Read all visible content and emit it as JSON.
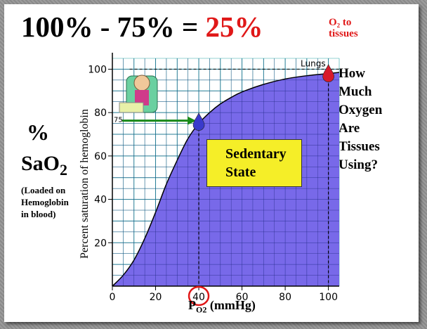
{
  "title": {
    "part1": "100% - 75% = ",
    "highlight": "25%",
    "sub_line1": "O₂ to",
    "sub_line2": "tissues"
  },
  "left_label": {
    "percent": "%",
    "sao2": "SaO",
    "sao2_sub": "2",
    "note_line1": "(Loaded on",
    "note_line2": "Hemoglobin",
    "note_line3": "in blood)"
  },
  "right_label": {
    "line1": "How",
    "line2": "Much",
    "line3": "Oxygen",
    "line4": "Are",
    "line5": "Tissues",
    "line6": "Using?"
  },
  "box_label": {
    "line1": "Sedentary",
    "line2": "State"
  },
  "colors": {
    "curve_fill": "#6c5ce7",
    "grid": "#2aa8a8",
    "highlight": "#e01818",
    "box": "#f5ee28",
    "arrow": "#1a8a1a"
  },
  "chart_data": {
    "type": "area",
    "xlabel": "P",
    "xlabel_sub": "O2",
    "xlabel_unit": " (mmHg)",
    "ylabel": "Percent saturation of hemoglobin",
    "xlim": [
      0,
      105
    ],
    "ylim": [
      0,
      105
    ],
    "x_ticks": [
      0,
      20,
      40,
      60,
      80,
      100
    ],
    "y_ticks": [
      20,
      40,
      60,
      80,
      100
    ],
    "x": [
      0,
      5,
      10,
      15,
      20,
      25,
      30,
      35,
      40,
      45,
      50,
      55,
      60,
      70,
      80,
      90,
      100,
      105
    ],
    "y": [
      0,
      5,
      12,
      22,
      34,
      47,
      58,
      68,
      75,
      80,
      84,
      87,
      89.5,
      93,
      95.5,
      97,
      98,
      98.5
    ],
    "annotations": {
      "venous_marker_label": "75",
      "venous_point": [
        40,
        75
      ],
      "lungs_label": "Lungs",
      "lungs_point": [
        100,
        98
      ],
      "dashed_line_y": 100,
      "highlighted_tick": "40"
    }
  }
}
